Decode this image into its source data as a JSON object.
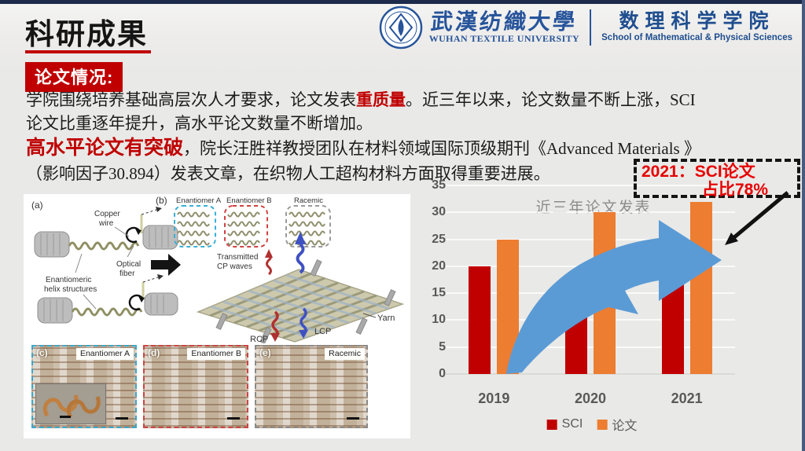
{
  "slide": {
    "header": {
      "title": "科研成果",
      "logo": {
        "university_cn": "武漢纺織大學",
        "university_en": "WUHAN TEXTILE UNIVERSITY",
        "school_cn": "数理科学学院",
        "school_en": "School of Mathematical & Physical Sciences"
      }
    },
    "badge": "论文情况:",
    "p1": {
      "part1": "学院围绕培养基础高层次人才要求，论文发表",
      "highlight": "重质量",
      "part2": "。近三年以来，论文数量不断上涨，SCI",
      "part3": "论文比重逐年提升，高水平论文数量不断增加。"
    },
    "p2": {
      "highlight": "高水平论文有突破",
      "part1": "，院长汪胜祥教授团队在材料领域国际顶级期刊《Advanced Materials 》",
      "part2": "（影响因子30.894）发表文章，在织物人工超构材料方面取得重要进展。"
    },
    "figure": {
      "panel_a_label": "(a)",
      "panel_b_label": "(b)",
      "copper_wire_1": "Copper",
      "copper_wire_2": "wire",
      "optical_fiber_1": "Optical",
      "optical_fiber_2": "fiber",
      "helix_1": "Enantiomeric",
      "helix_2": "helix structures",
      "inset_a": "Enantiomer A",
      "inset_b": "Enantiomer B",
      "inset_racemic": "Racemic",
      "transmitted_1": "Transmitted",
      "transmitted_2": "CP waves",
      "rcp": "RCP",
      "lcp": "LCP",
      "yarn": "Yarn",
      "photos": [
        {
          "label": "(c)",
          "caption": "Enantiomer A"
        },
        {
          "label": "(d)",
          "caption": "Enantiomer B"
        },
        {
          "label": "(e)",
          "caption": "Racemic"
        }
      ]
    },
    "callout": {
      "line1": "2021：SCI论文",
      "line2": "占比78%"
    },
    "colors": {
      "accent_red": "#c00000",
      "bar_sci": "#c00000",
      "bar_paper": "#ed7d31",
      "trend_arrow_blue": "#5b9bd5",
      "callout_red": "#e60000",
      "logo_blue": "#27549b"
    }
  },
  "chart_data": {
    "type": "bar",
    "title": "近三年论文发表",
    "categories": [
      "2019",
      "2020",
      "2021"
    ],
    "series": [
      {
        "name": "SCI",
        "color": "#c00000",
        "values": [
          20,
          17,
          25
        ]
      },
      {
        "name": "论文",
        "color": "#ed7d31",
        "values": [
          25,
          30,
          32
        ]
      }
    ],
    "ylim": [
      0,
      35
    ],
    "ytick_step": 5,
    "grid": true,
    "legend_position": "bottom"
  }
}
